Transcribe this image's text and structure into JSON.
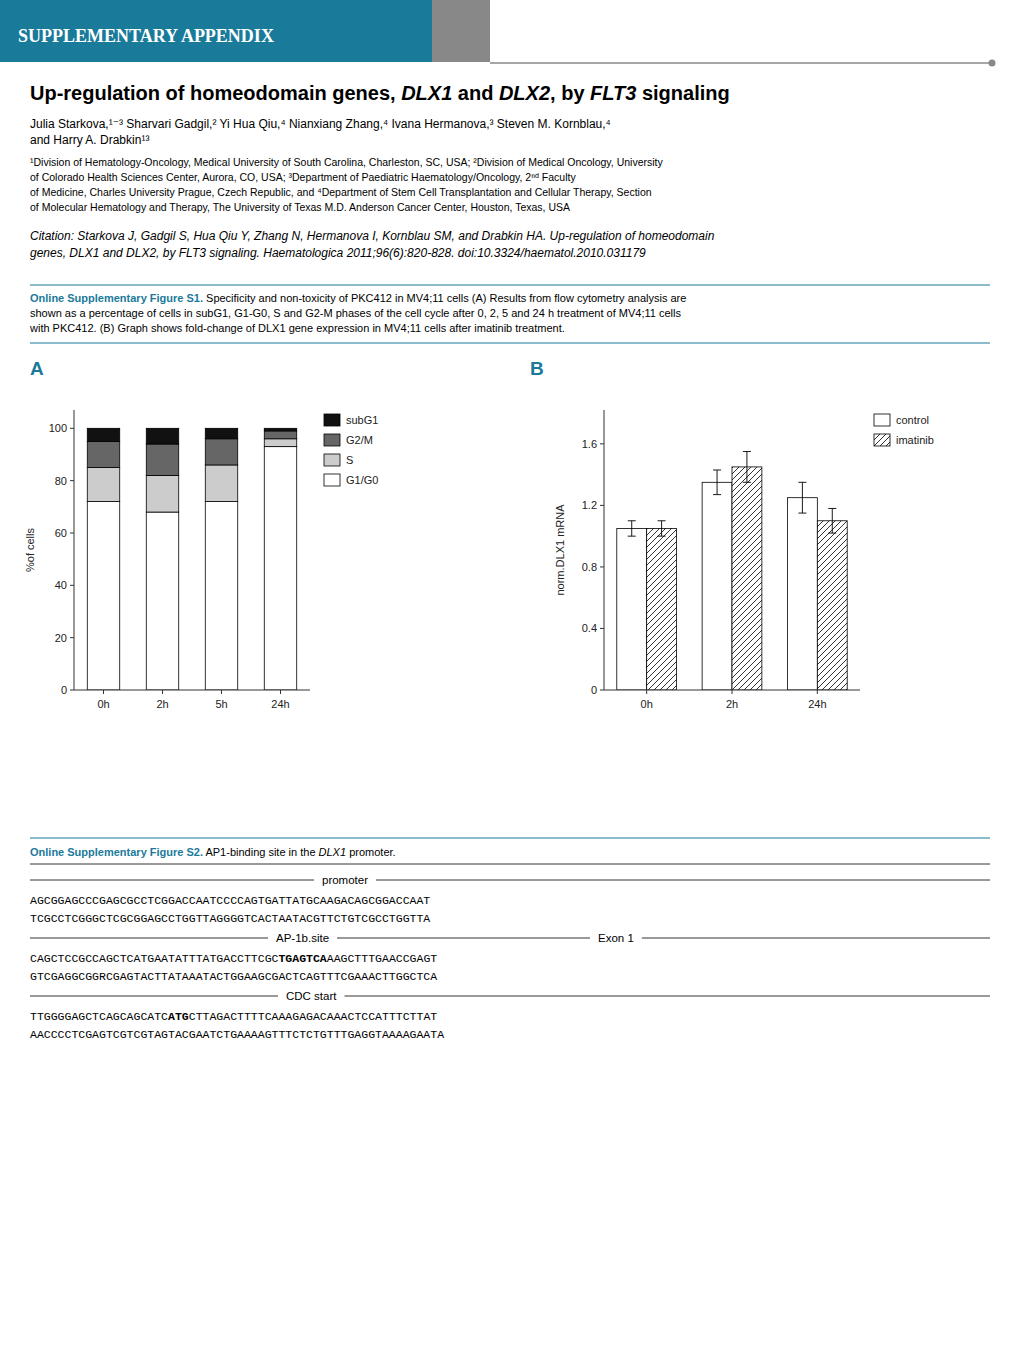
{
  "chart_data": [
    {
      "type": "bar",
      "title": "A",
      "stacked": true,
      "categories": [
        "0h",
        "2h",
        "5h",
        "24h"
      ],
      "series": [
        {
          "name": "G1/G0",
          "color": "#ffffff",
          "values": [
            72,
            68,
            72,
            93
          ]
        },
        {
          "name": "S",
          "color": "#cccccc",
          "values": [
            13,
            14,
            14,
            3
          ]
        },
        {
          "name": "G2/M",
          "color": "#666666",
          "values": [
            10,
            12,
            10,
            3
          ]
        },
        {
          "name": "subG1",
          "color": "#111111",
          "values": [
            5,
            6,
            4,
            1
          ]
        }
      ],
      "y_label": "%of cells",
      "ylim": [
        0,
        107
      ],
      "yticks": [
        0,
        20,
        40,
        60,
        80,
        100
      ],
      "grid": false,
      "legend": "right"
    },
    {
      "type": "bar",
      "title": "B",
      "categories": [
        "0h",
        "2h",
        "24h"
      ],
      "series": [
        {
          "name": "control",
          "color": "#ffffff",
          "values": [
            1.05,
            1.35,
            1.25
          ],
          "errors": [
            0.05,
            0.08,
            0.1
          ]
        },
        {
          "name": "imatinib",
          "color": "#ffffff",
          "values": [
            1.05,
            1.45,
            1.1
          ],
          "errors": [
            0.05,
            0.1,
            0.08
          ]
        }
      ],
      "y_label": "norm.DLX1 mRNA",
      "ylim": [
        0,
        1.82
      ],
      "yticks": [
        0,
        0.4,
        0.8,
        1.2,
        1.6
      ],
      "grid": false,
      "legend": "right"
    }
  ],
  "page": {
    "header_color": "#1a7a9a",
    "header_gray": "#888888",
    "teal_color": "#1a7a9a",
    "link_color": "#1a7a9a",
    "header_text": "SUPPLEMENTARY APPENDIX",
    "title_parts": [
      {
        "text": "Up-regulation of homeodomain genes, ",
        "italic": false
      },
      {
        "text": "DLX1",
        "italic": true
      },
      {
        "text": " and ",
        "italic": false
      },
      {
        "text": "DLX2",
        "italic": true
      },
      {
        "text": ", by ",
        "italic": false
      },
      {
        "text": "FLT3",
        "italic": true
      },
      {
        "text": " signaling",
        "italic": false
      }
    ],
    "authors": [
      "Julia Starkova,¹⁻³ Sharvari Gadgil,² Yi Hua Qiu,⁴ Nianxiang Zhang,⁴ Ivana Hermanova,³ Steven M. Kornblau,⁴",
      "and Harry A. Drabkin¹³"
    ],
    "affiliations": [
      "¹Division of Hematology-Oncology, Medical University of South Carolina, Charleston, SC, USA; ²Division of Medical Oncology, University",
      "of Colorado Health Sciences Center, Aurora, CO, USA; ³Department of Paediatric Haematology/Oncology, 2ⁿᵈ Faculty",
      "of Medicine, Charles University Prague, Czech Republic, and ⁴Department of Stem Cell Transplantation and Cellular Therapy, Section",
      "of Molecular Hematology and Therapy, The University of Texas M.D. Anderson Cancer Center, Houston, Texas, USA"
    ],
    "citation": [
      "Citation: Starkova J, Gadgil S, Hua Qiu Y, Zhang N, Hermanova I, Kornblau SM, and Drabkin HA. Up-regulation of homeodomain",
      "genes, DLX1 and DLX2, by FLT3 signaling. Haematologica 2011;96(6):820-828. doi:10.3324/haematol.2010.031179"
    ],
    "figure_s1": {
      "label": "Online Supplementary Figure S1.",
      "lines": [
        " Specificity and non-toxicity of PKC412 in MV4;11 cells (A) Results from flow cytometry analysis are",
        "shown as a percentage of cells in subG1, G1-G0, S and G2-M phases of the cell cycle after 0, 2, 5 and 24 h treatment of MV4;11 cells",
        "with PKC412. (B) Graph shows fold-change of DLX1 gene expression in MV4;11 cells after imatinib treatment."
      ]
    },
    "figure_s2": {
      "label": "Online Supplementary Figure S2.",
      "parts": [
        {
          "text": " AP1-binding site in the ",
          "italic": false
        },
        {
          "text": "DLX1",
          "italic": true
        },
        {
          "text": " promoter.",
          "italic": false
        }
      ]
    },
    "sections": [
      {
        "labels": [
          "promoter"
        ],
        "sequences": [
          [
            {
              "text": "AGCGGAGCCCGAGCGCCTCGGACCAATCCCCAGTGATTATGCAAGACAGCGGACCAAT",
              "bold": false
            }
          ],
          [
            {
              "text": "TCGCCTCGGGCTCGCGGAGCCTGGTTAGGGGTCACTAATACGTTCTGTCGCCTGGTTA",
              "bold": false
            }
          ]
        ]
      },
      {
        "labels": [
          "AP-1b.site",
          "Exon 1"
        ],
        "sequences": [
          [
            {
              "text": "CAGCTCCGCCAGCTCATGAATATTTATGACCTTCGC",
              "bold": false
            },
            {
              "text": "TGAGTCA",
              "bold": true
            },
            {
              "text": "AAGCTTTGAACCGAGT",
              "bold": false
            }
          ],
          [
            {
              "text": "GTCGAGGCGGRCGAGTACTTATAAATACTGGAAGCGACTCAGTTTCGAAACTTGGCTCA",
              "bold": false
            }
          ]
        ]
      },
      {
        "labels": [
          "CDC start"
        ],
        "sequences": [
          [
            {
              "text": "TTGGGGAGCTCAGCAGCATC",
              "bold": false
            },
            {
              "text": "ATG",
              "bold": true
            },
            {
              "text": "CTTAGACTTTTCAAAGAGACAAACTCCATTTCTTAT",
              "bold": false
            }
          ],
          [
            {
              "text": "AACCCCTCGAGTCGTCGTAGTACGAATCTGAAAAGTTTCTCTGTTTGAGGTAAAAGAATA",
              "bold": false
            }
          ]
        ]
      }
    ]
  }
}
